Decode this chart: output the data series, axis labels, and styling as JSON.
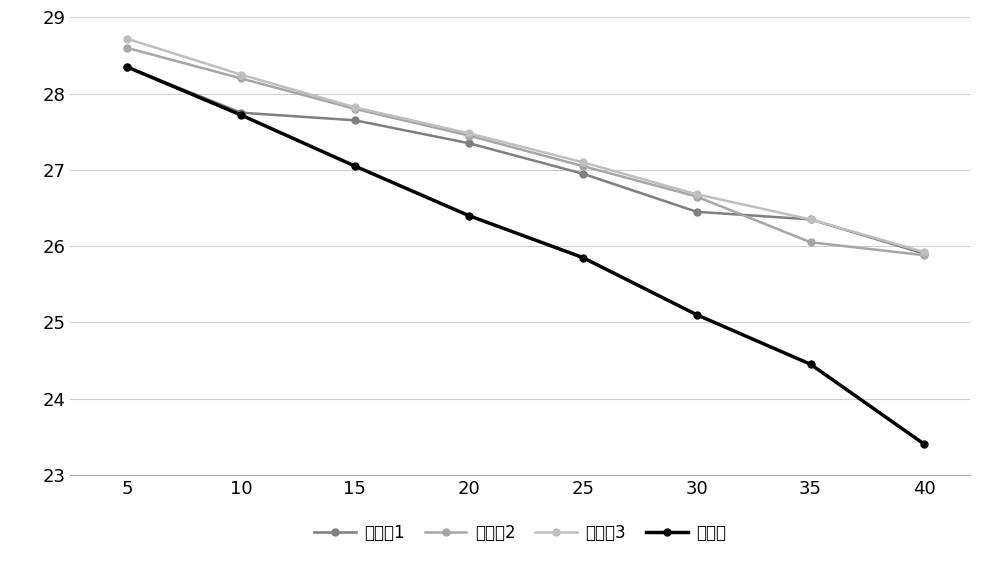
{
  "x": [
    5,
    10,
    15,
    20,
    25,
    30,
    35,
    40
  ],
  "series": {
    "实施例1": [
      28.35,
      27.75,
      27.65,
      27.35,
      26.95,
      26.45,
      26.35,
      25.9
    ],
    "实施例2": [
      28.6,
      28.2,
      27.8,
      27.45,
      27.05,
      26.65,
      26.05,
      25.88
    ],
    "实施例3": [
      28.72,
      28.25,
      27.82,
      27.48,
      27.1,
      26.68,
      26.35,
      25.92
    ],
    "对照组": [
      28.35,
      27.72,
      27.05,
      26.4,
      25.85,
      25.1,
      24.45,
      23.4
    ]
  },
  "colors": {
    "实施例1": "#7f7f7f",
    "实施例2": "#a6a6a6",
    "实施例3": "#bfbfbf",
    "对照组": "#000000"
  },
  "line_widths": {
    "实施例1": 1.8,
    "实施例2": 1.8,
    "实施例3": 1.8,
    "对照组": 2.5
  },
  "marker_sizes": {
    "实施例1": 5,
    "实施例2": 5,
    "实施例3": 5,
    "对照组": 5
  },
  "ylim": [
    23,
    29
  ],
  "yticks": [
    23,
    24,
    25,
    26,
    27,
    28,
    29
  ],
  "xticks": [
    5,
    10,
    15,
    20,
    25,
    30,
    35,
    40
  ],
  "background_color": "#ffffff",
  "grid_color": "#d0d0d0",
  "legend_order": [
    "实施例1",
    "实施例2",
    "实施例3",
    "对照组"
  ]
}
